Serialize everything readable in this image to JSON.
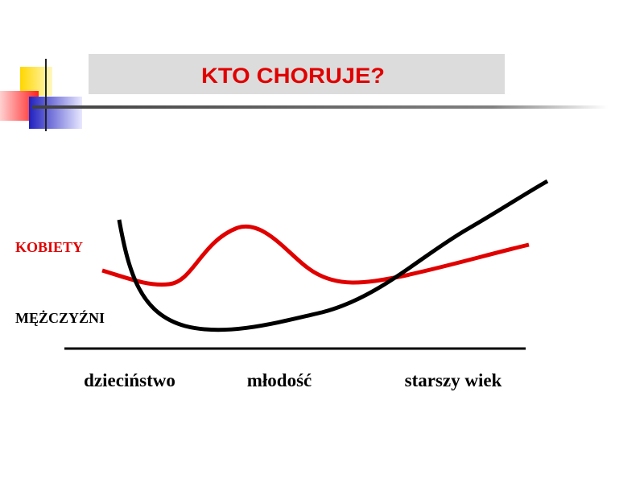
{
  "title": "KTO CHORUJE?",
  "series_labels": [
    "KOBIETY",
    "MĘŻCZYŹNI"
  ],
  "x_labels": [
    "dzieciństwo",
    "młodość",
    "starszy wiek"
  ]
}
